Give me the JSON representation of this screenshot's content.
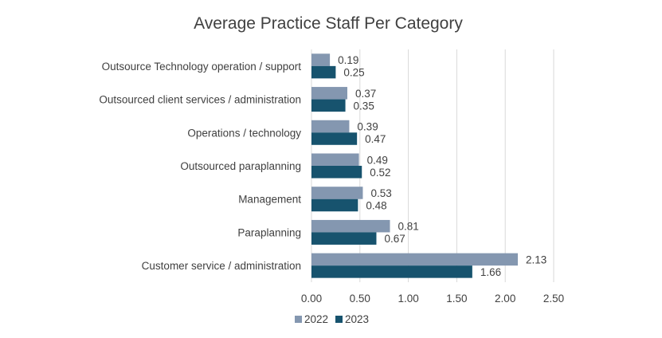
{
  "chart_data": {
    "type": "bar",
    "orientation": "horizontal",
    "title": "Average Practice Staff Per Category",
    "categories": [
      "Outsource Technology operation / support",
      "Outsourced client services / administration",
      "Operations / technology",
      "Outsourced paraplanning",
      "Management",
      "Paraplanning",
      "Customer service / administration"
    ],
    "series": [
      {
        "name": "2022",
        "color": "#8497B0",
        "values": [
          0.19,
          0.37,
          0.39,
          0.49,
          0.53,
          0.81,
          2.13
        ]
      },
      {
        "name": "2023",
        "color": "#17536E",
        "values": [
          0.25,
          0.35,
          0.47,
          0.52,
          0.48,
          0.67,
          1.66
        ]
      }
    ],
    "data_labels": [
      [
        "0.19",
        "0.37",
        "0.39",
        "0.49",
        "0.53",
        "0.81",
        "2.13"
      ],
      [
        "0.25",
        "0.35",
        "0.47",
        "0.52",
        "0.48",
        "0.67",
        "1.66"
      ]
    ],
    "xlim": [
      0,
      2.5
    ],
    "x_ticks": [
      0,
      0.5,
      1,
      1.5,
      2,
      2.5
    ],
    "x_tick_labels": [
      "0.00",
      "0.50",
      "1.00",
      "1.50",
      "2.00",
      "2.50"
    ],
    "grid": true,
    "legend_position": "bottom"
  }
}
